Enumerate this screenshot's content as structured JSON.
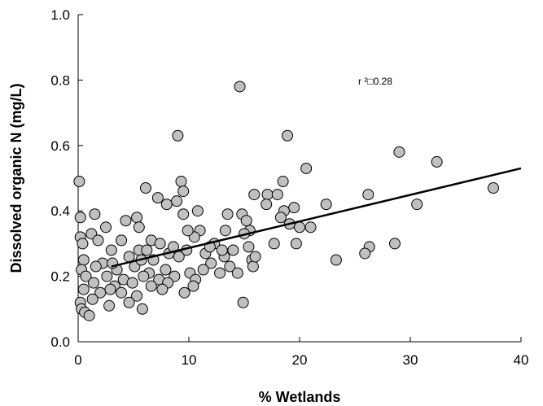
{
  "chart_data": {
    "type": "scatter",
    "title": "",
    "xlabel": "% Wetlands",
    "ylabel": "Dissolved organic N (mg/L)",
    "xlim": [
      0,
      40
    ],
    "ylim": [
      0.0,
      1.0
    ],
    "xticks": [
      "0",
      "10",
      "20",
      "30",
      "40"
    ],
    "yticks": [
      "0.0",
      "0.2",
      "0.4",
      "0.6",
      "0.8",
      "1.0"
    ],
    "grid": false,
    "marker_color": "#c0c0c0",
    "annotation": "r ²□0.28",
    "trendline": {
      "x": [
        3,
        40
      ],
      "y": [
        0.23,
        0.53
      ]
    },
    "points": [
      [
        14.6,
        0.78
      ],
      [
        9.0,
        0.63
      ],
      [
        18.9,
        0.63
      ],
      [
        29.0,
        0.58
      ],
      [
        32.4,
        0.55
      ],
      [
        20.6,
        0.53
      ],
      [
        0.1,
        0.49
      ],
      [
        9.3,
        0.49
      ],
      [
        18.5,
        0.49
      ],
      [
        37.5,
        0.47
      ],
      [
        6.1,
        0.47
      ],
      [
        9.5,
        0.46
      ],
      [
        15.9,
        0.45
      ],
      [
        17.1,
        0.45
      ],
      [
        18.0,
        0.45
      ],
      [
        26.2,
        0.45
      ],
      [
        8.9,
        0.43
      ],
      [
        7.2,
        0.44
      ],
      [
        22.4,
        0.42
      ],
      [
        30.6,
        0.42
      ],
      [
        19.5,
        0.41
      ],
      [
        17.0,
        0.42
      ],
      [
        8.0,
        0.42
      ],
      [
        10.8,
        0.4
      ],
      [
        9.5,
        0.39
      ],
      [
        13.5,
        0.39
      ],
      [
        14.8,
        0.39
      ],
      [
        0.2,
        0.38
      ],
      [
        1.5,
        0.39
      ],
      [
        18.6,
        0.4
      ],
      [
        4.3,
        0.37
      ],
      [
        5.3,
        0.38
      ],
      [
        15.2,
        0.37
      ],
      [
        18.3,
        0.38
      ],
      [
        19.1,
        0.36
      ],
      [
        20.0,
        0.35
      ],
      [
        21.0,
        0.35
      ],
      [
        5.5,
        0.35
      ],
      [
        2.5,
        0.35
      ],
      [
        11.0,
        0.34
      ],
      [
        13.3,
        0.34
      ],
      [
        15.5,
        0.34
      ],
      [
        0.2,
        0.32
      ],
      [
        1.2,
        0.33
      ],
      [
        10.5,
        0.32
      ],
      [
        15.0,
        0.33
      ],
      [
        0.4,
        0.3
      ],
      [
        1.8,
        0.31
      ],
      [
        3.9,
        0.31
      ],
      [
        6.6,
        0.31
      ],
      [
        7.4,
        0.3
      ],
      [
        12.3,
        0.3
      ],
      [
        17.7,
        0.3
      ],
      [
        19.7,
        0.3
      ],
      [
        26.3,
        0.29
      ],
      [
        28.6,
        0.3
      ],
      [
        25.9,
        0.27
      ],
      [
        14.0,
        0.28
      ],
      [
        15.4,
        0.29
      ],
      [
        23.3,
        0.25
      ],
      [
        3.0,
        0.28
      ],
      [
        5.5,
        0.28
      ],
      [
        8.2,
        0.27
      ],
      [
        9.8,
        0.28
      ],
      [
        11.5,
        0.27
      ],
      [
        13.2,
        0.26
      ],
      [
        0.5,
        0.25
      ],
      [
        2.2,
        0.24
      ],
      [
        4.6,
        0.26
      ],
      [
        6.8,
        0.25
      ],
      [
        9.1,
        0.26
      ],
      [
        12.0,
        0.24
      ],
      [
        15.7,
        0.25
      ],
      [
        0.3,
        0.22
      ],
      [
        1.6,
        0.23
      ],
      [
        3.5,
        0.22
      ],
      [
        5.1,
        0.23
      ],
      [
        6.4,
        0.21
      ],
      [
        7.9,
        0.22
      ],
      [
        10.1,
        0.21
      ],
      [
        11.3,
        0.22
      ],
      [
        13.7,
        0.23
      ],
      [
        15.8,
        0.23
      ],
      [
        0.7,
        0.2
      ],
      [
        2.6,
        0.2
      ],
      [
        4.1,
        0.19
      ],
      [
        5.9,
        0.2
      ],
      [
        7.3,
        0.19
      ],
      [
        8.7,
        0.2
      ],
      [
        10.6,
        0.19
      ],
      [
        12.8,
        0.21
      ],
      [
        14.4,
        0.21
      ],
      [
        1.4,
        0.18
      ],
      [
        3.3,
        0.17
      ],
      [
        4.9,
        0.18
      ],
      [
        6.6,
        0.17
      ],
      [
        8.1,
        0.18
      ],
      [
        10.4,
        0.17
      ],
      [
        0.5,
        0.16
      ],
      [
        2.0,
        0.15
      ],
      [
        3.9,
        0.15
      ],
      [
        5.3,
        0.14
      ],
      [
        7.6,
        0.16
      ],
      [
        9.6,
        0.15
      ],
      [
        0.2,
        0.12
      ],
      [
        1.3,
        0.13
      ],
      [
        2.8,
        0.11
      ],
      [
        4.6,
        0.12
      ],
      [
        5.8,
        0.1
      ],
      [
        14.9,
        0.12
      ],
      [
        0.3,
        0.1
      ],
      [
        0.6,
        0.09
      ],
      [
        1.0,
        0.08
      ],
      [
        9.9,
        0.34
      ],
      [
        8.6,
        0.29
      ],
      [
        11.9,
        0.29
      ],
      [
        3.1,
        0.24
      ],
      [
        6.2,
        0.28
      ],
      [
        13.0,
        0.28
      ],
      [
        16.0,
        0.26
      ],
      [
        2.9,
        0.16
      ],
      [
        5.7,
        0.25
      ]
    ]
  }
}
